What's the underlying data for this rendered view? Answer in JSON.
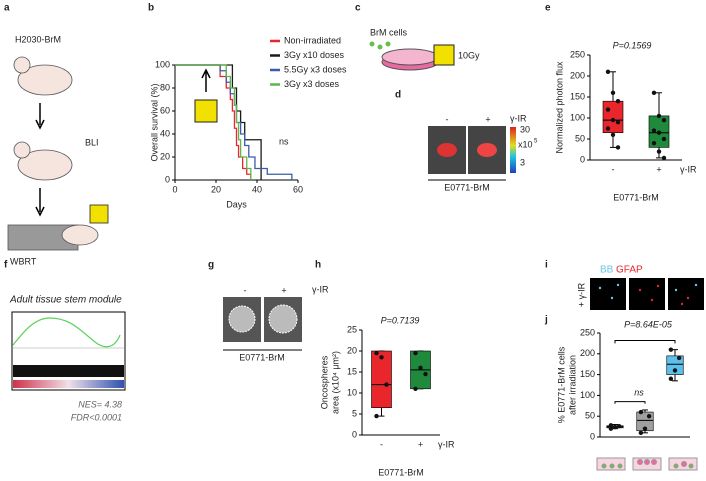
{
  "panel_labels": [
    "a",
    "b",
    "c",
    "d",
    "e",
    "f",
    "g",
    "h",
    "i",
    "j"
  ],
  "a": {
    "labels": [
      "H2030-BrM",
      "BLI",
      "WBRT"
    ]
  },
  "c": {
    "labels": [
      "BrM cells",
      "10Gy"
    ]
  },
  "d": {
    "columns": [
      "-",
      "+"
    ],
    "treatment": "γ-IR",
    "scale": [
      "30",
      "x10",
      "5",
      "3"
    ],
    "caption": "E0771-BrM"
  },
  "f": {
    "title": "Adult tissue stem module",
    "nes": "NES= 4.38",
    "fdr": "FDR<0.0001"
  },
  "g": {
    "columns": [
      "-",
      "+"
    ],
    "treatment": "γ-IR",
    "caption": "E0771-BrM"
  },
  "i": {
    "stains": [
      "BB",
      "GFAP"
    ],
    "treatment": "+ γ-IR"
  },
  "chart_data": [
    {
      "type": "line",
      "step": true,
      "ylabel": "Overall survival (%)",
      "xlabel": "Days",
      "annotation": "ns",
      "xlim": [
        0,
        60
      ],
      "xticks": [
        0,
        20,
        40,
        60
      ],
      "ylim": [
        0,
        100
      ],
      "yticks": [
        0,
        20,
        40,
        60,
        80,
        100
      ],
      "series": [
        {
          "name": "Non-irradiated",
          "color": "#e8262b",
          "x": [
            0,
            22,
            25,
            27,
            28,
            29,
            30,
            31,
            33,
            35,
            37
          ],
          "values": [
            100,
            90,
            80,
            70,
            60,
            45,
            30,
            20,
            10,
            5,
            0
          ]
        },
        {
          "name": "3Gy x10 doses",
          "color": "#1a1a1a",
          "x": [
            0,
            28,
            30,
            32,
            34,
            42
          ],
          "values": [
            100,
            80,
            60,
            50,
            35,
            0
          ]
        },
        {
          "name": "5.5Gy x3 doses",
          "color": "#3b5bab",
          "x": [
            0,
            22,
            25,
            27,
            29,
            30,
            32,
            34,
            36,
            39,
            45,
            57
          ],
          "values": [
            100,
            95,
            85,
            75,
            65,
            50,
            40,
            30,
            20,
            10,
            5,
            0
          ]
        },
        {
          "name": "3Gy x3 doses",
          "color": "#5cb84a",
          "x": [
            0,
            25,
            27,
            29,
            30,
            31,
            32,
            35,
            37
          ],
          "values": [
            100,
            90,
            80,
            65,
            50,
            35,
            20,
            10,
            0
          ]
        }
      ]
    },
    {
      "type": "box",
      "annotations": [
        "P=0.1569"
      ],
      "ylabel": [
        "Normalized photon flux"
      ],
      "categories": [
        "-",
        "+"
      ],
      "xlabel": "γ-IR",
      "caption": "E0771-BrM",
      "ylim": [
        0,
        250
      ],
      "yticks": [
        0,
        50,
        100,
        150,
        200,
        250
      ],
      "boxes": [
        {
          "color": "#e8262b",
          "min": 30,
          "q1": 65,
          "median": 95,
          "q3": 140,
          "max": 210,
          "points": [
            210,
            160,
            140,
            120,
            95,
            90,
            75,
            60,
            30
          ]
        },
        {
          "color": "#1f8a3c",
          "min": 5,
          "q1": 30,
          "median": 65,
          "q3": 105,
          "max": 160,
          "points": [
            160,
            105,
            95,
            70,
            65,
            50,
            40,
            20,
            5
          ]
        }
      ]
    },
    {
      "type": "box",
      "annotations": [
        "P=0.7139"
      ],
      "ylabel": [
        "Oncospheres",
        "area (x10⁴ μm²)"
      ],
      "categories": [
        "-",
        "+"
      ],
      "xlabel": "γ-IR",
      "caption": "E0771-BrM",
      "ylim": [
        0,
        25
      ],
      "yticks": [
        0,
        5,
        10,
        15,
        20,
        25
      ],
      "boxes": [
        {
          "color": "#e8262b",
          "min": 4.5,
          "q1": 6.5,
          "median": 12,
          "q3": 20,
          "max": 20,
          "points": [
            19.5,
            18.5,
            12,
            4.5
          ]
        },
        {
          "color": "#1f8a3c",
          "min": 11,
          "q1": 11,
          "median": 15.5,
          "q3": 20,
          "max": 20,
          "points": [
            19.5,
            16,
            14.5,
            11
          ]
        }
      ]
    },
    {
      "type": "box",
      "annotations": [
        "P=8.64E-05",
        "ns"
      ],
      "ylabel": [
        "% E0771-BrM cells",
        "after irradiation"
      ],
      "ylim": [
        0,
        250
      ],
      "yticks": [
        0,
        50,
        100,
        150,
        200,
        250
      ],
      "boxes": [
        {
          "color": "#2e6b2e",
          "min": 20,
          "q1": 22,
          "median": 25,
          "q3": 27,
          "max": 30,
          "points": [
            20,
            24,
            26,
            28
          ]
        },
        {
          "color": "#a0a0a0",
          "min": 10,
          "q1": 15,
          "median": 40,
          "q3": 60,
          "max": 65,
          "points": [
            10,
            20,
            50,
            60
          ]
        },
        {
          "color": "#5bc0eb",
          "min": 135,
          "q1": 150,
          "median": 175,
          "q3": 195,
          "max": 210,
          "points": [
            140,
            160,
            190,
            210
          ]
        }
      ]
    }
  ]
}
